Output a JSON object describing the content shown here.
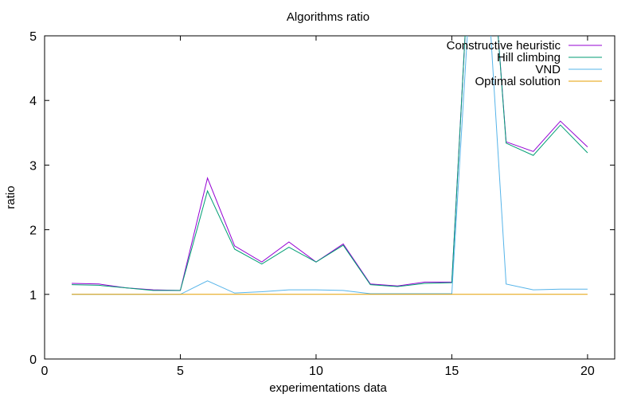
{
  "chart_data": {
    "type": "line",
    "title": "Algorithms ratio",
    "xlabel": "experimentations data",
    "ylabel": "ratio",
    "xlim": [
      0,
      21
    ],
    "ylim": [
      0,
      5
    ],
    "xticks": [
      0,
      5,
      10,
      15,
      20
    ],
    "yticks": [
      0,
      1,
      2,
      3,
      4,
      5
    ],
    "grid": false,
    "legend_position": "top-right",
    "x": [
      1,
      2,
      3,
      4,
      5,
      6,
      7,
      8,
      9,
      10,
      11,
      12,
      13,
      14,
      15,
      16,
      17,
      18,
      19,
      20
    ],
    "series": [
      {
        "name": "Constructive heuristic",
        "color": "#9400d3",
        "values": [
          1.17,
          1.16,
          1.1,
          1.07,
          1.06,
          2.8,
          1.75,
          1.5,
          1.81,
          1.5,
          1.78,
          1.16,
          1.13,
          1.19,
          1.19,
          9.0,
          3.36,
          3.21,
          3.68,
          3.28
        ]
      },
      {
        "name": "Hill climbing",
        "color": "#009e73",
        "values": [
          1.15,
          1.14,
          1.1,
          1.06,
          1.06,
          2.6,
          1.7,
          1.47,
          1.73,
          1.5,
          1.76,
          1.15,
          1.12,
          1.17,
          1.18,
          9.0,
          3.34,
          3.15,
          3.62,
          3.19
        ]
      },
      {
        "name": "VND",
        "color": "#56b4e9",
        "values": [
          1.0,
          1.0,
          1.0,
          1.0,
          1.0,
          1.21,
          1.02,
          1.04,
          1.07,
          1.07,
          1.06,
          1.01,
          1.01,
          1.01,
          1.01,
          8.0,
          1.16,
          1.07,
          1.08,
          1.08
        ]
      },
      {
        "name": "Optimal solution",
        "color": "#e69f00",
        "values": [
          1,
          1,
          1,
          1,
          1,
          1,
          1,
          1,
          1,
          1,
          1,
          1,
          1,
          1,
          1,
          1,
          1,
          1,
          1,
          1
        ]
      }
    ]
  }
}
